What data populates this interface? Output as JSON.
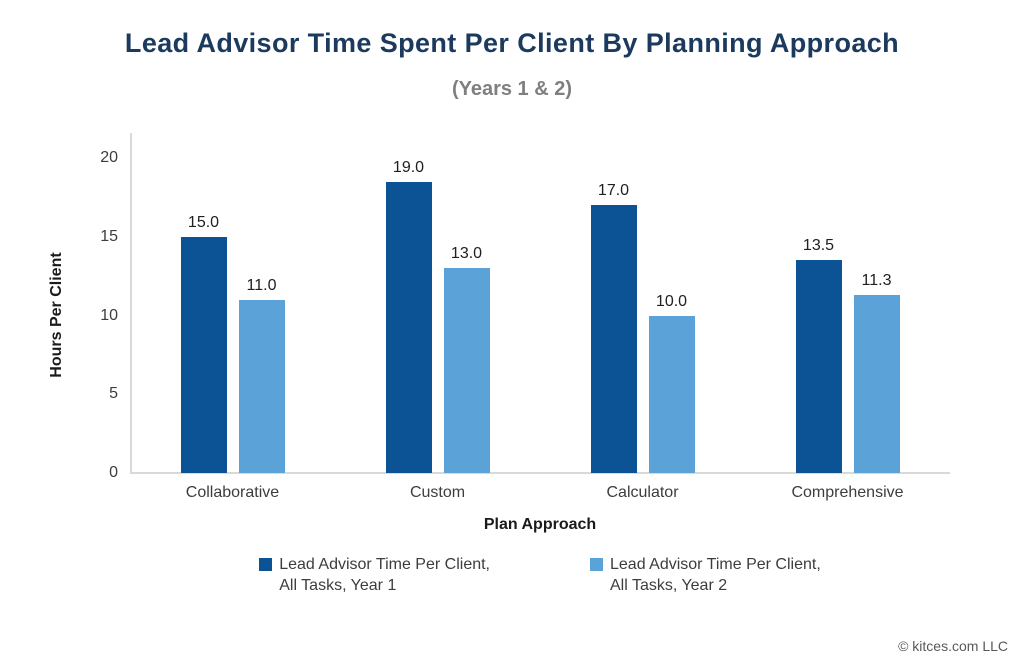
{
  "header": {
    "title": "Lead Advisor Time Spent Per Client By Planning Approach",
    "subtitle": "(Years 1 & 2)"
  },
  "chart_data": {
    "type": "bar",
    "categories": [
      "Collaborative",
      "Custom",
      "Calculator",
      "Comprehensive"
    ],
    "series": [
      {
        "name": "Lead Advisor Time Per Client, All Tasks, Year 1",
        "color": "#0b5394",
        "values": [
          15.0,
          19.0,
          17.0,
          13.5
        ],
        "labels": [
          "15.0",
          "19.0",
          "17.0",
          "13.5"
        ]
      },
      {
        "name": "Lead Advisor Time Per Client, All Tasks, Year 2",
        "color": "#5ba2d9",
        "values": [
          11.0,
          13.0,
          10.0,
          11.3
        ],
        "labels": [
          "11.0",
          "13.0",
          "10.0",
          "11.3"
        ]
      }
    ],
    "xlabel": "Plan Approach",
    "ylabel": "Hours Per Client",
    "ylim": [
      0,
      20
    ],
    "yticks": [
      0,
      5,
      10,
      15,
      20
    ],
    "grid": false,
    "legend_position": "bottom-center",
    "bar_value_labels": true
  },
  "legend": {
    "entries": [
      {
        "line1": "Lead Advisor Time Per Client,",
        "line2": "All Tasks, Year 1",
        "color": "#0b5394"
      },
      {
        "line1": "Lead Advisor Time Per Client,",
        "line2": "All Tasks, Year 2",
        "color": "#5ba2d9"
      }
    ]
  },
  "footer": {
    "copyright": "© kitces.com LLC"
  },
  "colors": {
    "title": "#1b3a5e",
    "subtitle": "#7f7f7f",
    "axis_line": "#d9d9d9",
    "year1_bar": "#0b5394",
    "year2_bar": "#5ba2d9"
  }
}
